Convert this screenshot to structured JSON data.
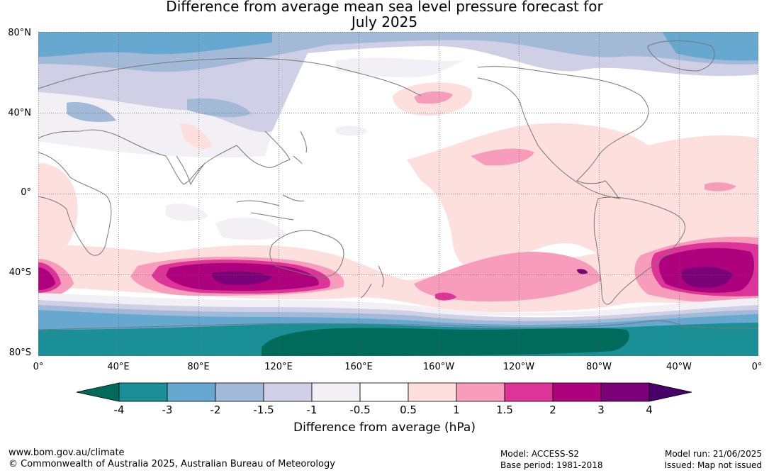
{
  "title": {
    "line1": "Difference from average mean sea level pressure forecast for",
    "line2": "July 2025"
  },
  "map": {
    "lat_labels": [
      "80°N",
      "40°N",
      "0°",
      "40°S",
      "80°S"
    ],
    "lon_labels": [
      "0°",
      "40°E",
      "80°E",
      "120°E",
      "160°E",
      "160°W",
      "120°W",
      "80°W",
      "40°W",
      "0°"
    ],
    "land_outline_color": "#777777",
    "grid_style": "dotted"
  },
  "colorbar": {
    "tick_labels": [
      "-4",
      "-3",
      "-2",
      "-1.5",
      "-1",
      "-0.5",
      "0.5",
      "1",
      "1.5",
      "2",
      "3",
      "4"
    ],
    "colors": [
      "#006b5a",
      "#1a8f96",
      "#66a8d0",
      "#a3b9d8",
      "#cfcfe5",
      "#f2eff5",
      "#ffffff",
      "#fde0dd",
      "#f79dbb",
      "#dd3497",
      "#ae017e",
      "#7a0177",
      "#49006a"
    ],
    "label": "Difference from average (hPa)"
  },
  "footer": {
    "url": "www.bom.gov.au/climate",
    "copyright": "© Commonwealth of Australia 2025, Australian Bureau of Meteorology",
    "model": "Model: ACCESS-S2",
    "base_period": "Base period: 1981-2018",
    "model_run": "Model run: 21/06/2025",
    "issued": "Issued: Map not issued"
  }
}
